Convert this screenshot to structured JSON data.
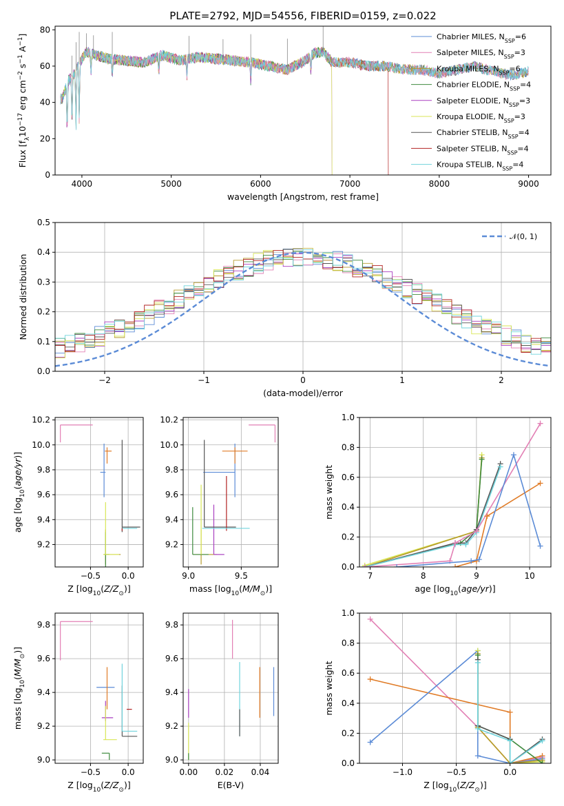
{
  "page": {
    "title": "PLATE=2792, MJD=54556, FIBERID=0159, z=0.022"
  },
  "colors": {
    "Chabrier MILES": "#5b8bd6",
    "Salpeter MILES": "#e27fb4",
    "Kroupa MILES": "#b69a2b",
    "Chabrier ELODIE": "#3e8a3e",
    "Salpeter ELODIE": "#a93ec0",
    "Kroupa ELODIE": "#d8e654",
    "Chabrier STELIB": "#555555",
    "Salpeter STELIB": "#b22222",
    "Kroupa STELIB": "#6fd3dc",
    "orange": "#e07b26",
    "ref": "#5b8bd6",
    "grid": "#b0b0b0"
  },
  "chart_data": [
    {
      "id": "spectrum",
      "type": "line",
      "xlabel": "wavelength [Angstrom, rest frame]",
      "ylabel": "Flux [f",
      "ylabel_sub": "λ",
      "ylabel_rest": "10",
      "ylabel_exp": "−17",
      "ylabel_units": " erg cm",
      "ylabel_exp2": "−2",
      "ylabel_s": " s",
      "ylabel_exp3": "−1",
      "ylabel_A": " A",
      "ylabel_exp4": "−1",
      "ylabel_close": "]",
      "xlim": [
        3700,
        9250
      ],
      "ylim": [
        0,
        82
      ],
      "xticks": [
        4000,
        5000,
        6000,
        7000,
        8000,
        9000
      ],
      "yticks": [
        0,
        20,
        40,
        60,
        80
      ],
      "legend_position": "upper-right",
      "legend": [
        {
          "model": "Chabrier MILES",
          "n": "6"
        },
        {
          "model": "Salpeter MILES",
          "n": "3"
        },
        {
          "model": "Kroupa MILES",
          "n": "6"
        },
        {
          "model": "Chabrier ELODIE",
          "n": "4"
        },
        {
          "model": "Salpeter ELODIE",
          "n": "3"
        },
        {
          "model": "Kroupa ELODIE",
          "n": "3"
        },
        {
          "model": "Chabrier STELIB",
          "n": "4"
        },
        {
          "model": "Salpeter STELIB",
          "n": "4"
        },
        {
          "model": "Kroupa STELIB",
          "n": "4"
        }
      ],
      "legend_n_label": "N",
      "legend_n_sub": "SSP",
      "continuum_x": [
        3780,
        3850,
        3920,
        3980,
        4050,
        4150,
        4300,
        4500,
        4700,
        4900,
        5100,
        5300,
        5500,
        5700,
        5900,
        6100,
        6300,
        6500,
        6600,
        6700,
        6800,
        7000,
        7200,
        7400,
        7600,
        7800,
        8000,
        8200,
        8400,
        8600,
        8800,
        9000
      ],
      "continuum_y": [
        42,
        52,
        56,
        62,
        68,
        66,
        64,
        63,
        62,
        66,
        63,
        65,
        64,
        63,
        62,
        60,
        58,
        63,
        67,
        68,
        62,
        62,
        60,
        60,
        58,
        58,
        56,
        58,
        60,
        57,
        55,
        57
      ],
      "cutoffs": [
        {
          "series": "Kroupa ELODIE",
          "x": 6800
        },
        {
          "series": "Salpeter STELIB",
          "x": 7430
        },
        {
          "series": "Salpeter ELODIE",
          "x": 6800
        }
      ]
    },
    {
      "id": "residuals",
      "type": "histogram",
      "xlabel": "(data-model)/error",
      "ylabel": "Normed distribution",
      "xlim": [
        -2.5,
        2.5
      ],
      "ylim": [
        0,
        0.5
      ],
      "xticks": [
        -2,
        -1,
        0,
        1,
        2
      ],
      "yticks": [
        0.0,
        0.1,
        0.2,
        0.3,
        0.4,
        0.5
      ],
      "ytick_labels": [
        "0.0",
        "0.1",
        "0.2",
        "0.3",
        "0.4",
        "0.5"
      ],
      "xtick_labels": [
        "−2",
        "−1",
        "0",
        "1",
        "2"
      ],
      "bin_width": 0.1,
      "legend": {
        "label": "𝒩(0, 1)",
        "position": "upper-right"
      },
      "reference": {
        "type": "normal",
        "mean": 0,
        "sigma": 1
      }
    },
    {
      "id": "age-vs-Z",
      "type": "errorbar",
      "xlabel": "Z [log",
      "xlabel_sub": "10",
      "xlabel_rest": "(Z/Z",
      "xlabel_sun": "⊙",
      "xlabel_close": ")]",
      "ylabel": "age  [log",
      "ylabel_sub": "10",
      "ylabel_rest": "(age/yr)]",
      "xlim": [
        -0.97,
        0.2
      ],
      "ylim": [
        9.02,
        10.22
      ],
      "xticks": [
        -0.5,
        0.0
      ],
      "xtick_labels": [
        "−0.5",
        "0.0"
      ],
      "yticks": [
        9.2,
        9.4,
        9.6,
        9.8,
        10.0,
        10.2
      ],
      "ytick_labels": [
        "9.2",
        "9.4",
        "9.6",
        "9.8",
        "10.0",
        "10.2"
      ],
      "points": [
        {
          "s": "Salpeter MILES",
          "x": -0.9,
          "y": 10.16,
          "ex": [
            0.0,
            0.43
          ],
          "ey": [
            0.14,
            0.0
          ]
        },
        {
          "s": "Chabrier MILES",
          "x": -0.32,
          "y": 9.78,
          "ex": [
            0.05,
            0.02
          ],
          "ey": [
            0.2,
            0.23
          ]
        },
        {
          "s": "orange",
          "x": -0.28,
          "y": 9.95,
          "ex": [
            0.03,
            0.06
          ],
          "ey": [
            0.1,
            0.03
          ]
        },
        {
          "s": "Kroupa MILES",
          "x": -0.3,
          "y": 9.12,
          "ex": [
            0.03,
            0.2
          ],
          "ey": [
            0.08,
            0.2
          ]
        },
        {
          "s": "Chabrier ELODIE",
          "x": -0.3,
          "y": 9.12,
          "ex": [
            0.02,
            0.05
          ],
          "ey": [
            0.1,
            0.18
          ]
        },
        {
          "s": "Kroupa ELODIE",
          "x": -0.3,
          "y": 9.12,
          "ex": [
            0.03,
            0.18
          ],
          "ey": [
            0.0,
            0.42
          ]
        },
        {
          "s": "Chabrier STELIB",
          "x": -0.08,
          "y": 9.34,
          "ex": [
            0.0,
            0.24
          ],
          "ey": [
            0.04,
            0.7
          ]
        },
        {
          "s": "Kroupa STELIB",
          "x": -0.08,
          "y": 9.33,
          "ex": [
            0.0,
            0.2
          ],
          "ey": [
            0.0,
            0.0
          ]
        },
        {
          "s": "Salpeter STELIB",
          "x": -0.08,
          "y": 9.33,
          "ex": [
            0.0,
            0.0
          ],
          "ey": [
            0.02,
            0.0
          ]
        }
      ]
    },
    {
      "id": "age-vs-mass",
      "type": "errorbar",
      "xlabel": "mass [log",
      "xlabel_sub": "10",
      "xlabel_rest": "(M/M",
      "xlabel_sun": "⊙",
      "xlabel_close": ")]",
      "xlim": [
        8.95,
        9.85
      ],
      "ylim": [
        9.02,
        10.22
      ],
      "xticks": [
        9.0,
        9.5
      ],
      "xtick_labels": [
        "9.0",
        "9.5"
      ],
      "yticks": [
        9.2,
        9.4,
        9.6,
        9.8,
        10.0,
        10.2
      ],
      "ytick_labels": [
        "9.2",
        "9.4",
        "9.6",
        "9.8",
        "10.0",
        "10.2"
      ],
      "points": [
        {
          "s": "Salpeter MILES",
          "x": 9.82,
          "y": 10.16,
          "ex": [
            0.25,
            0.0
          ],
          "ey": [
            0.14,
            0.0
          ]
        },
        {
          "s": "Chabrier MILES",
          "x": 9.44,
          "y": 9.78,
          "ex": [
            0.3,
            0.0
          ],
          "ey": [
            0.2,
            0.23
          ]
        },
        {
          "s": "orange",
          "x": 9.44,
          "y": 9.95,
          "ex": [
            0.12,
            0.12
          ],
          "ey": [
            0.1,
            0.03
          ]
        },
        {
          "s": "Kroupa MILES",
          "x": 9.12,
          "y": 9.12,
          "ex": [
            0.08,
            0.15
          ],
          "ey": [
            0.08,
            0.2
          ]
        },
        {
          "s": "Chabrier ELODIE",
          "x": 9.04,
          "y": 9.12,
          "ex": [
            0.0,
            0.15
          ],
          "ey": [
            0.0,
            0.38
          ]
        },
        {
          "s": "Kroupa ELODIE",
          "x": 9.12,
          "y": 9.12,
          "ex": [
            0.0,
            0.0
          ],
          "ey": [
            0.0,
            0.56
          ]
        },
        {
          "s": "Salpeter ELODIE",
          "x": 9.24,
          "y": 9.12,
          "ex": [
            0.0,
            0.1
          ],
          "ey": [
            0.0,
            0.4
          ]
        },
        {
          "s": "Chabrier STELIB",
          "x": 9.15,
          "y": 9.34,
          "ex": [
            0.0,
            0.3
          ],
          "ey": [
            0.0,
            0.7
          ]
        },
        {
          "s": "Salpeter STELIB",
          "x": 9.36,
          "y": 9.33,
          "ex": [
            0.0,
            0.0
          ],
          "ey": [
            0.02,
            0.42
          ]
        },
        {
          "s": "Kroupa STELIB",
          "x": 9.33,
          "y": 9.33,
          "ex": [
            0.2,
            0.25
          ],
          "ey": [
            0.0,
            0.0
          ]
        }
      ]
    },
    {
      "id": "mass-weight-vs-age",
      "type": "line",
      "xlabel": "age  [log",
      "xlabel_sub": "10",
      "xlabel_rest": "(age/yr)]",
      "ylabel": "mass weight",
      "xlim": [
        6.8,
        10.4
      ],
      "ylim": [
        0,
        1.0
      ],
      "xticks": [
        7,
        8,
        9,
        10
      ],
      "yticks": [
        0.0,
        0.2,
        0.4,
        0.6,
        0.8,
        1.0
      ],
      "ytick_labels": [
        "0.0",
        "0.2",
        "0.4",
        "0.6",
        "0.8",
        "1.0"
      ],
      "series": [
        {
          "s": "Kroupa ELODIE",
          "x": [
            6.9,
            9.0,
            9.1
          ],
          "y": [
            0.01,
            0.24,
            0.75
          ]
        },
        {
          "s": "Kroupa MILES",
          "x": [
            6.9,
            9.0,
            9.1
          ],
          "y": [
            0.0,
            0.24,
            0.73
          ]
        },
        {
          "s": "Chabrier ELODIE",
          "x": [
            6.9,
            8.7,
            9.0,
            9.1
          ],
          "y": [
            0.0,
            0.16,
            0.25,
            0.72
          ]
        },
        {
          "s": "Chabrier STELIB",
          "x": [
            6.9,
            8.6,
            8.8,
            9.0,
            9.45
          ],
          "y": [
            0.0,
            0.16,
            0.16,
            0.25,
            0.69
          ]
        },
        {
          "s": "Kroupa STELIB",
          "x": [
            6.9,
            8.6,
            8.8,
            9.0,
            9.45
          ],
          "y": [
            0.0,
            0.15,
            0.15,
            0.23,
            0.67
          ]
        },
        {
          "s": "Salpeter MILES",
          "x": [
            6.9,
            8.5,
            8.6,
            9.0,
            10.2
          ],
          "y": [
            0.0,
            0.04,
            0.16,
            0.24,
            0.96
          ]
        },
        {
          "s": "orange",
          "x": [
            8.6,
            9.0,
            9.2,
            10.2
          ],
          "y": [
            0.0,
            0.04,
            0.34,
            0.56
          ]
        },
        {
          "s": "Chabrier MILES",
          "x": [
            7.5,
            8.9,
            9.05,
            9.7,
            10.2
          ],
          "y": [
            0.0,
            0.04,
            0.05,
            0.75,
            0.14
          ]
        }
      ]
    },
    {
      "id": "mass-vs-Z",
      "type": "errorbar",
      "xlabel": "Z [log",
      "xlabel_sub": "10",
      "xlabel_rest": "(Z/Z",
      "xlabel_sun": "⊙",
      "xlabel_close": ")]",
      "ylabel": "mass [log",
      "ylabel_sub": "10",
      "ylabel_rest": "(M/M",
      "ylabel_sun": "⊙",
      "ylabel_close": ")]",
      "xlim": [
        -0.97,
        0.2
      ],
      "ylim": [
        8.98,
        9.87
      ],
      "xticks": [
        -0.5,
        0.0
      ],
      "xtick_labels": [
        "−0.5",
        "0.0"
      ],
      "yticks": [
        9.0,
        9.2,
        9.4,
        9.6,
        9.8
      ],
      "ytick_labels": [
        "9.0",
        "9.2",
        "9.4",
        "9.6",
        "9.8"
      ],
      "points": [
        {
          "s": "Salpeter MILES",
          "x": -0.9,
          "y": 9.82,
          "ex": [
            0.0,
            0.43
          ],
          "ey": [
            0.23,
            0.0
          ]
        },
        {
          "s": "Chabrier MILES",
          "x": -0.3,
          "y": 9.43,
          "ex": [
            0.12,
            0.12
          ],
          "ey": [
            0.0,
            0.0
          ]
        },
        {
          "s": "orange",
          "x": -0.28,
          "y": 9.4,
          "ex": [
            0.0,
            0.0
          ],
          "ey": [
            0.1,
            0.15
          ]
        },
        {
          "s": "Salpeter ELODIE",
          "x": -0.3,
          "y": 9.25,
          "ex": [
            0.05,
            0.1
          ],
          "ey": [
            0.02,
            0.1
          ]
        },
        {
          "s": "Kroupa ELODIE",
          "x": -0.3,
          "y": 9.12,
          "ex": [
            0.03,
            0.15
          ],
          "ey": [
            0.0,
            0.2
          ]
        },
        {
          "s": "Chabrier ELODIE",
          "x": -0.25,
          "y": 9.04,
          "ex": [
            0.1,
            0.0
          ],
          "ey": [
            0.04,
            0.0
          ]
        },
        {
          "s": "Chabrier STELIB",
          "x": -0.08,
          "y": 9.14,
          "ex": [
            0.0,
            0.2
          ],
          "ey": [
            0.0,
            0.3
          ]
        },
        {
          "s": "Salpeter STELIB",
          "x": -0.02,
          "y": 9.3,
          "ex": [
            0.0,
            0.07
          ],
          "ey": [
            0.0,
            0.0
          ]
        },
        {
          "s": "Kroupa STELIB",
          "x": -0.08,
          "y": 9.17,
          "ex": [
            0.0,
            0.2
          ],
          "ey": [
            0.0,
            0.4
          ]
        }
      ]
    },
    {
      "id": "mass-vs-ebv",
      "type": "errorbar",
      "xlabel": "E(B-V)",
      "xlim": [
        -0.003,
        0.05
      ],
      "ylim": [
        8.98,
        9.87
      ],
      "xticks": [
        0.0,
        0.02,
        0.04
      ],
      "xtick_labels": [
        "0.00",
        "0.02",
        "0.04"
      ],
      "yticks": [
        9.0,
        9.2,
        9.4,
        9.6,
        9.8
      ],
      "ytick_labels": [
        "9.0",
        "9.2",
        "9.4",
        "9.6",
        "9.8"
      ],
      "points": [
        {
          "s": "Salpeter MILES",
          "x": 0.0245,
          "y": 9.7,
          "ey": [
            0.1,
            0.13
          ]
        },
        {
          "s": "Kroupa STELIB",
          "x": 0.0285,
          "y": 9.38,
          "ey": [
            0.24,
            0.2
          ]
        },
        {
          "s": "Chabrier STELIB",
          "x": 0.0285,
          "y": 9.3,
          "ey": [
            0.16,
            0.0
          ]
        },
        {
          "s": "orange",
          "x": 0.0397,
          "y": 9.4,
          "ey": [
            0.15,
            0.15
          ]
        },
        {
          "s": "Chabrier MILES",
          "x": 0.0475,
          "y": 9.43,
          "ey": [
            0.17,
            0.12
          ]
        },
        {
          "s": "Salpeter ELODIE",
          "x": 0.0,
          "y": 9.3,
          "ey": [
            0.05,
            0.12
          ]
        },
        {
          "s": "Kroupa ELODIE",
          "x": 0.0,
          "y": 9.12,
          "ey": [
            0.12,
            0.1
          ]
        },
        {
          "s": "Chabrier ELODIE",
          "x": 0.0,
          "y": 9.04,
          "ey": [
            0.04,
            0.0
          ]
        }
      ]
    },
    {
      "id": "mass-weight-vs-Z",
      "type": "line",
      "xlabel": "Z [log",
      "xlabel_sub": "10",
      "xlabel_rest": "(Z/Z",
      "xlabel_sun": "⊙",
      "xlabel_close": ")]",
      "ylabel": "mass weight",
      "xlim": [
        -1.4,
        0.38
      ],
      "ylim": [
        0,
        1.0
      ],
      "xticks": [
        -1.0,
        -0.5,
        0.0
      ],
      "xtick_labels": [
        "−1.0",
        "−0.5",
        "0.0"
      ],
      "yticks": [
        0.0,
        0.2,
        0.4,
        0.6,
        0.8,
        1.0
      ],
      "ytick_labels": [
        "0.0",
        "0.2",
        "0.4",
        "0.6",
        "0.8",
        "1.0"
      ],
      "series": [
        {
          "s": "Salpeter MILES",
          "x": [
            -1.3,
            -0.3,
            0.0,
            0.3
          ],
          "y": [
            0.96,
            0.24,
            0.0,
            0.04
          ]
        },
        {
          "s": "orange",
          "x": [
            -1.3,
            0.0,
            0.0,
            0.3
          ],
          "y": [
            0.56,
            0.34,
            0.0,
            0.05
          ]
        },
        {
          "s": "Chabrier MILES",
          "x": [
            -1.3,
            -0.3,
            -0.3,
            0.0,
            0.3
          ],
          "y": [
            0.14,
            0.75,
            0.05,
            0.0,
            0.03
          ]
        },
        {
          "s": "Kroupa ELODIE",
          "x": [
            -0.3,
            -0.3,
            0.0,
            0.3
          ],
          "y": [
            0.75,
            0.24,
            0.0,
            0.01
          ]
        },
        {
          "s": "Kroupa MILES",
          "x": [
            -0.3,
            -0.3,
            0.0,
            0.3
          ],
          "y": [
            0.73,
            0.24,
            0.0,
            0.02
          ]
        },
        {
          "s": "Chabrier ELODIE",
          "x": [
            -0.3,
            -0.3,
            0.0,
            0.3
          ],
          "y": [
            0.72,
            0.25,
            0.16,
            0.0
          ]
        },
        {
          "s": "Chabrier STELIB",
          "x": [
            -0.3,
            -0.3,
            0.0,
            0.0,
            0.3
          ],
          "y": [
            0.69,
            0.25,
            0.16,
            0.0,
            0.16
          ]
        },
        {
          "s": "Kroupa STELIB",
          "x": [
            -0.3,
            -0.3,
            0.0,
            0.0,
            0.3
          ],
          "y": [
            0.67,
            0.23,
            0.15,
            0.0,
            0.15
          ]
        }
      ]
    }
  ]
}
